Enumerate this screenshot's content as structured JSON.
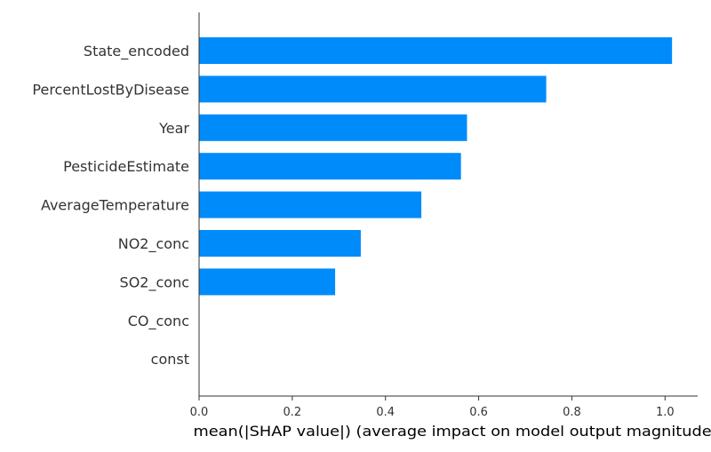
{
  "chart_data": {
    "type": "bar",
    "orientation": "horizontal",
    "categories": [
      "State_encoded",
      "PercentLostByDisease",
      "Year",
      "PesticideEstimate",
      "AverageTemperature",
      "NO2_conc",
      "SO2_conc",
      "CO_conc",
      "const"
    ],
    "values": [
      1.015,
      0.745,
      0.575,
      0.562,
      0.477,
      0.347,
      0.292,
      0.0,
      0.0
    ],
    "xlabel": "mean(|SHAP value|) (average impact on model output magnitude)",
    "ylabel": "",
    "xlim": [
      0.0,
      1.07
    ],
    "xticks": [
      0.0,
      0.2,
      0.4,
      0.6,
      0.8,
      1.0
    ],
    "xtick_labels": [
      "0.0",
      "0.2",
      "0.4",
      "0.6",
      "0.8",
      "1.0"
    ],
    "grid": false,
    "bar_color": "#008bfb",
    "axis_color": "#333333"
  }
}
